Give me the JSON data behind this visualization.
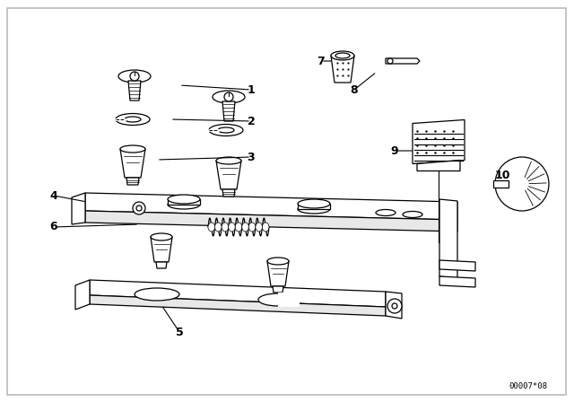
{
  "background_color": "#ffffff",
  "border_color": "#bbbbbb",
  "diagram_code": "00007*08",
  "lw": 0.9,
  "color": "#000000"
}
